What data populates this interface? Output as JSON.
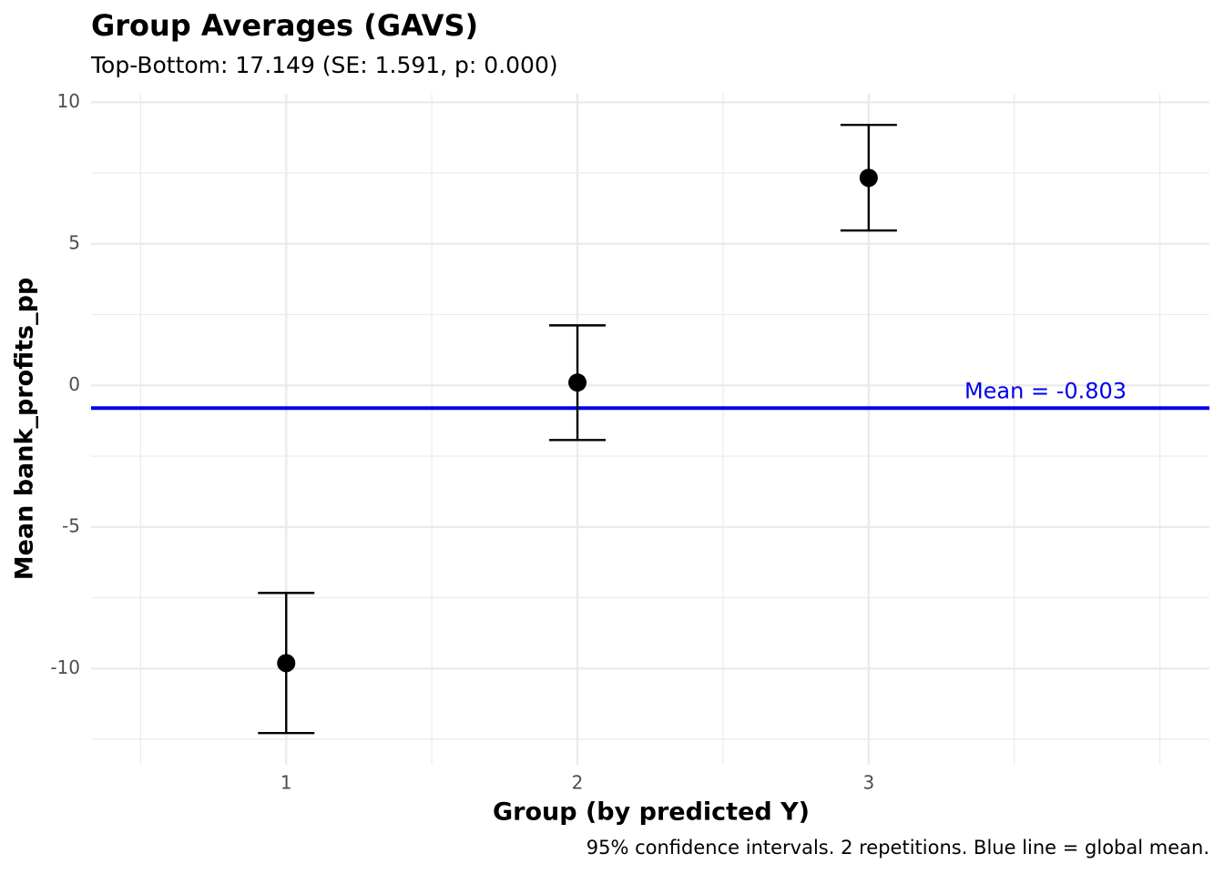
{
  "chart_data": {
    "type": "errorbar",
    "title": "Group Averages (GAVS)",
    "subtitle": "Top-Bottom: 17.149 (SE: 1.591, p: 0.000)",
    "x_label": "Group (by predicted Y)",
    "y_label": "Mean bank_profits_pp",
    "caption": "95% confidence intervals. 2 repetitions. Blue line = global mean.",
    "x": [
      1,
      2,
      3
    ],
    "series": [
      {
        "color": "#000000",
        "values": [
          -9.81,
          0.1,
          7.33
        ],
        "lower": [
          -12.28,
          -1.93,
          5.47
        ],
        "upper": [
          -7.33,
          2.12,
          9.2
        ]
      }
    ],
    "mean": -0.803,
    "mean_color": "#0000ee",
    "mean_label": "Mean = -0.803",
    "xlim": [
      0.33,
      4.17
    ],
    "xticks": [
      1,
      2,
      3
    ],
    "xminor": [
      0.5,
      1.5,
      2.5,
      3.5,
      4
    ],
    "ylim": [
      -13.4,
      10.3
    ],
    "yticks": [
      -10,
      -5,
      0,
      5,
      10
    ],
    "yminor": [
      -12.5,
      -7.5,
      -2.5,
      2.5,
      7.5
    ],
    "grid": true
  }
}
